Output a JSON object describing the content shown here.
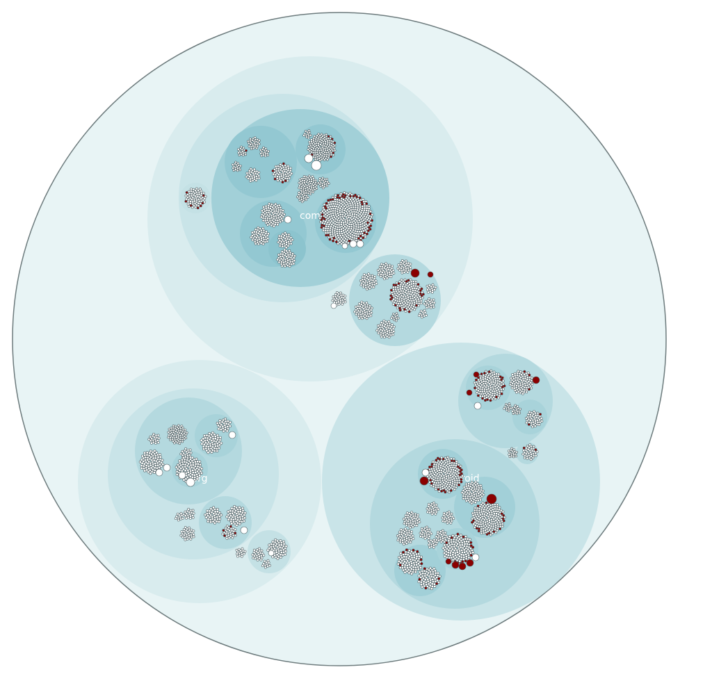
{
  "labels": {
    "com": "com",
    "org": "org",
    "android": "android"
  },
  "colors": {
    "root_fill": "#e8f4f5",
    "depth1_fill": "#d9ecee",
    "depth2_fill": "#c9e4e8",
    "depth3_fill": "#b4d9df",
    "depth4_fill": "#a2d0d8",
    "depth5_fill": "#93c8d2",
    "leaf_fill": "#ffffff",
    "leaf_highlight": "#8b0000",
    "outline": "#6c7a7c"
  }
}
